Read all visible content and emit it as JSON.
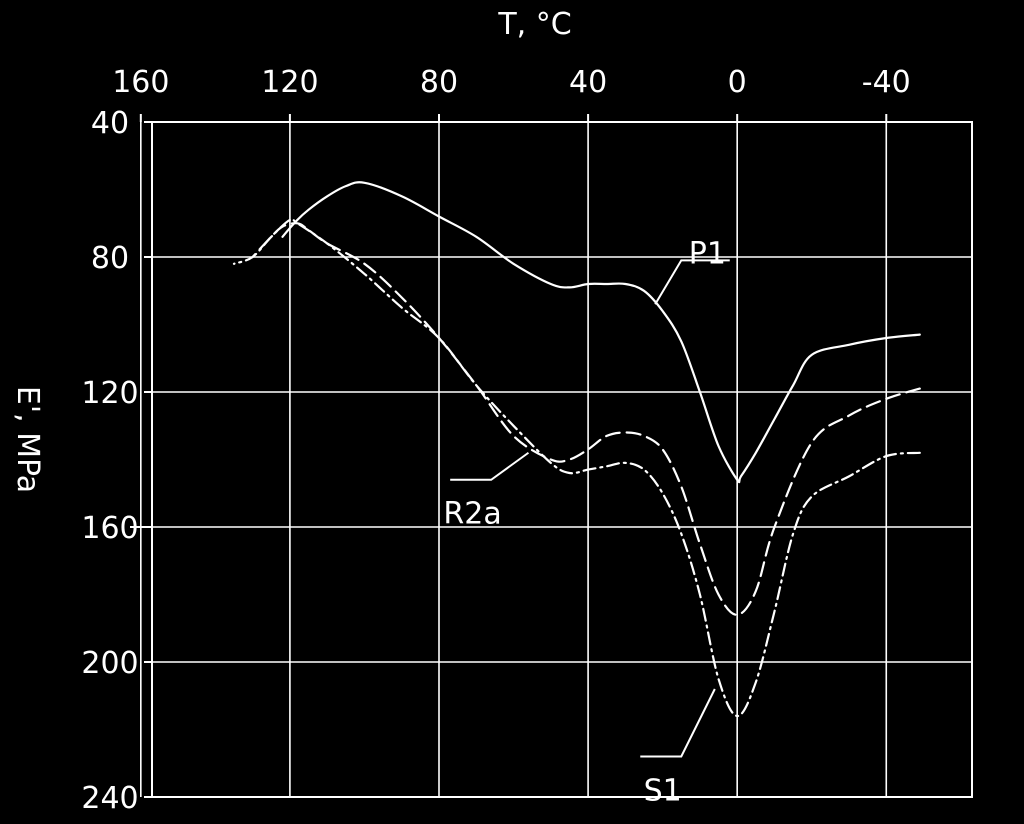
{
  "chart_data": {
    "type": "line",
    "xlabel": "T, °C",
    "ylabel": "E', MPa",
    "xlim": [
      -63,
      157
    ],
    "ylim": [
      40,
      240
    ],
    "x_axis_position": "top",
    "y_axis_inverted": true,
    "image_mirrored_horizontally": true,
    "grid": true,
    "x_ticks": [
      -40,
      0,
      40,
      80,
      120,
      160
    ],
    "y_ticks": [
      40,
      80,
      120,
      160,
      200,
      240
    ],
    "x_tick_labels": [
      "-40",
      "0",
      "40",
      "80",
      "120",
      "160"
    ],
    "y_tick_labels": [
      "40",
      "80",
      "120",
      "160",
      "200",
      "240"
    ],
    "series": [
      {
        "name": "P1",
        "style": "solid",
        "x": [
          -49,
          -40,
          -30,
          -20,
          -15,
          -10,
          -5,
          -1,
          0,
          5,
          10,
          15,
          20,
          25,
          30,
          35,
          40,
          45,
          50,
          60,
          70,
          80,
          90,
          100,
          105,
          110,
          115,
          118,
          122
        ],
        "y": [
          103,
          104,
          106,
          109,
          118,
          128,
          138,
          145,
          146,
          136,
          120,
          105,
          96,
          90,
          88,
          88,
          88,
          89,
          88,
          82,
          74,
          68,
          62,
          58,
          59,
          62,
          66,
          69,
          74
        ]
      },
      {
        "name": "R2a",
        "style": "dashed",
        "x": [
          -49,
          -40,
          -30,
          -20,
          -10,
          -5,
          0,
          5,
          10,
          15,
          20,
          25,
          30,
          35,
          40,
          45,
          50,
          60,
          70,
          80,
          90,
          100,
          110,
          115,
          118,
          122,
          125,
          130
        ],
        "y": [
          119,
          122,
          127,
          135,
          160,
          179,
          186,
          180,
          165,
          148,
          137,
          133,
          132,
          133,
          137,
          140,
          140,
          133,
          118,
          104,
          92,
          82,
          76,
          72,
          70,
          71,
          74,
          80
        ]
      },
      {
        "name": "S1",
        "style": "dash-dot",
        "x": [
          -49,
          -40,
          -30,
          -20,
          -15,
          -10,
          -5,
          0,
          5,
          10,
          15,
          20,
          25,
          30,
          35,
          40,
          45,
          50,
          60,
          70,
          80,
          90,
          100,
          110,
          118,
          120,
          125,
          130,
          135
        ],
        "y": [
          138,
          139,
          145,
          151,
          162,
          185,
          206,
          216,
          205,
          180,
          162,
          150,
          143,
          141,
          142,
          143,
          144,
          141,
          130,
          118,
          104,
          95,
          85,
          76,
          70,
          69,
          74,
          80,
          82
        ]
      }
    ],
    "annotations": [
      {
        "text": "P1",
        "series": "P1"
      },
      {
        "text": "R2a",
        "series": "R2a"
      },
      {
        "text": "S1",
        "series": "S1"
      }
    ]
  }
}
